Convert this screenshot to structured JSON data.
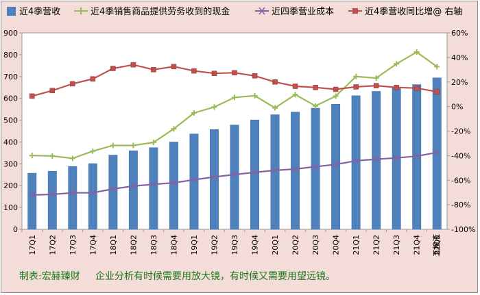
{
  "legend": {
    "revenue_label": "近4季营收",
    "cash_label": "近4季销售商品提供劳务收到的现金",
    "cost_label": "近四季营业成本",
    "yoy_label": "近4季营收同比增@ 右轴"
  },
  "footer": {
    "credit_text": "制表:宏赫臻财     企业分析有时候需要用放大镜，有时候又需要用望远镜。",
    "watermark": "五粮液"
  },
  "colors": {
    "revenue": "#4f81bd",
    "cash": "#9bbb59",
    "cost": "#8064a2",
    "yoy": "#c0504d",
    "plot_bg": "#ffffff",
    "frame_bg": "#f4dcd9"
  },
  "chart_data": {
    "type": "bar",
    "categories": [
      "17Q1",
      "17Q2",
      "17Q3",
      "17Q4",
      "18Q1",
      "18Q2",
      "18Q3",
      "18Q4",
      "19Q1",
      "19Q2",
      "19Q3",
      "19Q4",
      "20Q1",
      "20Q2",
      "20Q3",
      "20Q4",
      "21Q1",
      "21Q2",
      "21Q3",
      "21Q4",
      "22Q1"
    ],
    "series": [
      {
        "name": "近4季营收",
        "kind": "bar",
        "axis": "left",
        "values": [
          257,
          266,
          288,
          301,
          340,
          360,
          374,
          400,
          437,
          457,
          478,
          501,
          525,
          537,
          555,
          573,
          612,
          632,
          650,
          663,
          694
        ]
      },
      {
        "name": "近4季销售商品提供劳务收到的现金",
        "kind": "line",
        "axis": "left",
        "values": [
          338,
          336,
          325,
          358,
          384,
          384,
          398,
          460,
          533,
          560,
          604,
          612,
          556,
          617,
          565,
          610,
          700,
          693,
          758,
          812,
          745
        ]
      },
      {
        "name": "近四季营业成本",
        "kind": "line",
        "axis": "left",
        "values": [
          157,
          160,
          167,
          167,
          185,
          198,
          206,
          213,
          227,
          240,
          251,
          261,
          270,
          276,
          287,
          297,
          314,
          321,
          327,
          335,
          352
        ]
      },
      {
        "name": "近4季营收同比增@ 右轴",
        "kind": "line",
        "axis": "right",
        "values": [
          8.5,
          13,
          18.5,
          22.5,
          31,
          34,
          30,
          32.5,
          29,
          27,
          27.5,
          25,
          20,
          16.5,
          15.5,
          14,
          16,
          17,
          15.5,
          15,
          12
        ]
      }
    ],
    "y_left": {
      "min": 0,
      "max": 900,
      "step": 100,
      "tick_labels": [
        "0",
        "100",
        "200",
        "300",
        "400",
        "500",
        "600",
        "700",
        "800",
        "900"
      ]
    },
    "y_right": {
      "min": -100,
      "max": 60,
      "step": 20,
      "tick_labels": [
        "-100%",
        "-80%",
        "-60%",
        "-40%",
        "-20%",
        "0%",
        "20%",
        "40%",
        "60%"
      ]
    },
    "grid": false,
    "legend_position": "top"
  }
}
